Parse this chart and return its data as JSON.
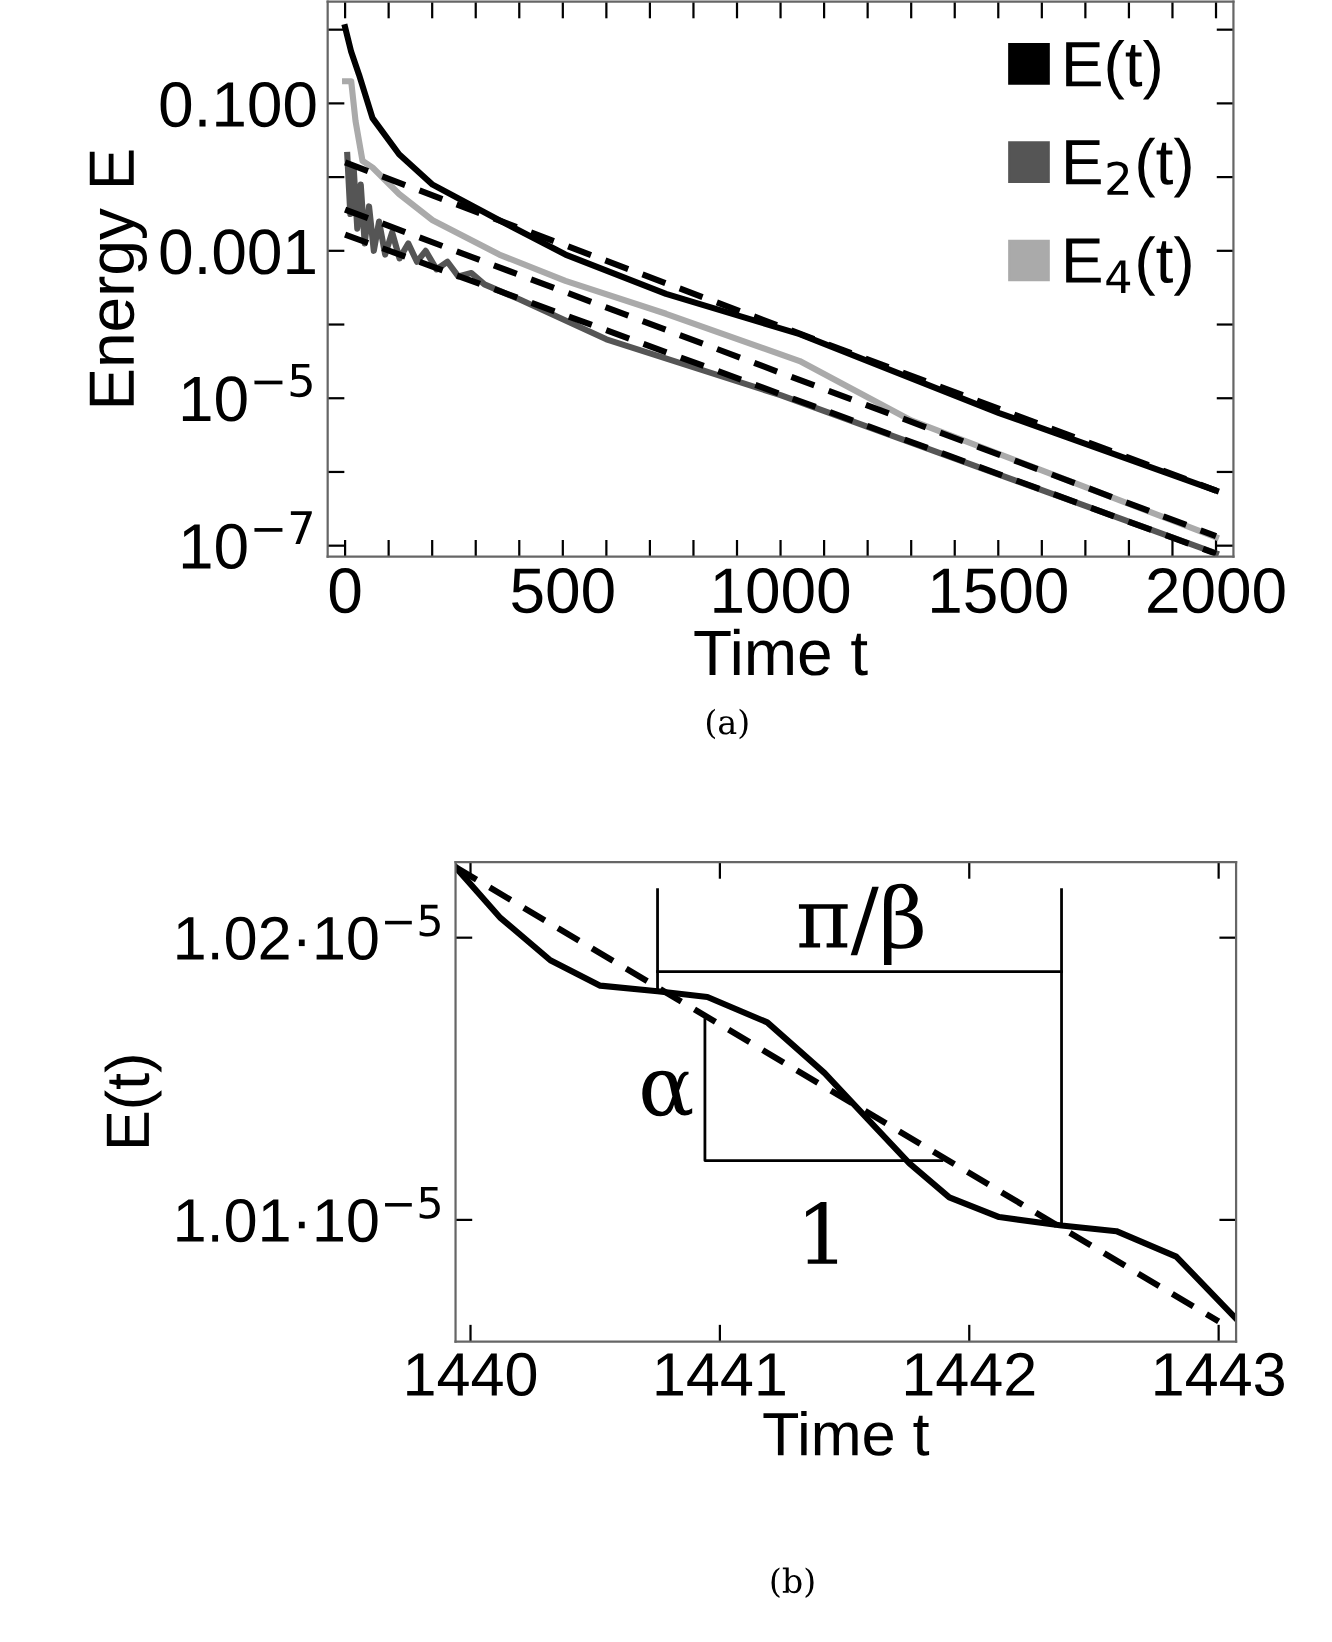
{
  "chart_data": [
    {
      "type": "line",
      "xlabel": "Time t",
      "ylabel": "Energy E",
      "log": "y",
      "legend": "top right",
      "grid": false,
      "marker": "none",
      "xlim": [
        -40,
        2040
      ],
      "xticks": [
        0,
        {
          "value": 100,
          "label": null
        },
        {
          "value": 200,
          "label": null
        },
        {
          "value": 300,
          "label": null
        },
        {
          "value": 400,
          "label": null
        },
        500,
        {
          "value": 600,
          "label": null
        },
        {
          "value": 700,
          "label": null
        },
        {
          "value": 800,
          "label": null
        },
        {
          "value": 900,
          "label": null
        },
        1000,
        {
          "value": 1100,
          "label": null
        },
        {
          "value": 1200,
          "label": null
        },
        {
          "value": 1300,
          "label": null
        },
        {
          "value": 1400,
          "label": null
        },
        1500,
        {
          "value": 1600,
          "label": null
        },
        {
          "value": 1700,
          "label": null
        },
        {
          "value": 1800,
          "label": null
        },
        {
          "value": 1900,
          "label": null
        },
        2000
      ],
      "ylim": [
        7.1e-08,
        2.4
      ],
      "yticks": [
        {
          "value": 1,
          "label": null
        },
        {
          "value": 0.1,
          "label": "0.100"
        },
        {
          "value": 0.01,
          "label": null
        },
        {
          "value": 0.001,
          "label": "0.001"
        },
        {
          "value": 0.0001,
          "label": null
        },
        {
          "value": 1e-05,
          "label": "10$^{−5}$"
        },
        {
          "value": 1e-06,
          "label": null
        },
        {
          "value": 1e-07,
          "label": "10$^{−7}$"
        }
      ],
      "annotations": [
        "(a)"
      ],
      "series": [
        {
          "name": "E(t)",
          "color": "#000000",
          "line_style": "solid",
          "x": [
            0,
            14,
            32,
            63,
            124,
            201,
            354,
            506,
            737,
            1044,
            1502,
            2000
          ],
          "values": [
            1.08,
            0.5,
            0.245,
            0.063,
            0.0204,
            0.0079,
            0.0026,
            0.00089,
            0.00026,
            7.4e-05,
            6.3e-06,
            5.6e-07
          ]
        },
        {
          "name": "E$_{2}$(t)",
          "color": "#555555",
          "line_style": "solid",
          "x": [
            5,
            12,
            20,
            28,
            36,
            45,
            55,
            66,
            78,
            92,
            108,
            125,
            145,
            165,
            185,
            210,
            235,
            260,
            290,
            320,
            400,
            600,
            1000,
            1500,
            2000
          ],
          "values": [
            0.02,
            0.00316,
            0.0126,
            0.002,
            0.0079,
            0.00126,
            0.004,
            0.001,
            0.0025,
            0.00089,
            0.00178,
            0.00079,
            0.00126,
            0.00071,
            0.001,
            0.00056,
            0.00071,
            0.00045,
            0.0005,
            0.00035,
            0.00022,
            6.3e-05,
            1.1e-05,
            9.3e-07,
            7.9e-08
          ]
        },
        {
          "name": "E$_{4}$(t)",
          "color": "#aaaaaa",
          "line_style": "solid",
          "x": [
            0,
            14,
            24,
            40,
            63,
            124,
            201,
            354,
            506,
            737,
            1044,
            1300,
            1600,
            2000
          ],
          "values": [
            0.2,
            0.2,
            0.0575,
            0.0166,
            0.0135,
            0.0059,
            0.0026,
            0.00089,
            0.00039,
            0.00014,
            3.2e-05,
            5e-06,
            1.05e-06,
            1.3e-07
          ]
        },
        {
          "color": "#000000",
          "line_style": "dashed",
          "x": [
            0,
            2000
          ],
          "values": [
            0.0158,
            5.6e-07
          ]
        },
        {
          "color": "#000000",
          "line_style": "dashed",
          "x": [
            0,
            2000
          ],
          "values": [
            0.00363,
            1.35e-07
          ]
        },
        {
          "color": "#000000",
          "line_style": "dashed",
          "x": [
            0,
            2000
          ],
          "values": [
            0.00166,
            7.8e-08
          ]
        }
      ]
    },
    {
      "type": "line",
      "xlabel": "Time t",
      "ylabel": "E(t)",
      "legend": false,
      "grid": false,
      "marker": "none",
      "xlim": [
        1439.94,
        1443.07
      ],
      "xticks": [
        1440,
        1441,
        1442,
        1443
      ],
      "ylim": [
        1.00569e-05,
        1.02268e-05
      ],
      "yticks": [
        {
          "value": 1.01e-05,
          "label": "1.01·10$^{−5}$"
        },
        {
          "value": 1.02e-05,
          "label": "1.02·10$^{−5}$"
        }
      ],
      "annotations": [
        "(b)",
        "π/β",
        "α",
        "1"
      ],
      "series": [
        {
          "color": "#000000",
          "line_style": "solid",
          "x": [
            1439.94,
            1440.12,
            1440.32,
            1440.52,
            1440.75,
            1440.95,
            1441.19,
            1441.42,
            1441.59,
            1441.76,
            1441.92,
            1442.12,
            1442.37,
            1442.59,
            1442.83,
            1443.07
          ],
          "values": [
            1.0225e-05,
            1.0207e-05,
            1.0192e-05,
            1.0183e-05,
            1.0181e-05,
            1.0179e-05,
            1.017e-05,
            1.0152e-05,
            1.0136e-05,
            1.012e-05,
            1.0108e-05,
            1.0101e-05,
            1.0098e-05,
            1.0096e-05,
            1.0087e-05,
            1.0065e-05
          ]
        },
        {
          "color": "#000000",
          "line_style": "dashed",
          "x": [
            1439.94,
            1443.0
          ],
          "values": [
            1.0225e-05,
            1.0064e-05
          ]
        },
        {
          "color": "#000000",
          "line_style": "solid",
          "x": [
            1440.75,
            1440.75
          ],
          "values": [
            1.0181e-05,
            1.0217e-05
          ]
        },
        {
          "color": "#000000",
          "line_style": "solid",
          "x": [
            1442.37,
            1442.37
          ],
          "values": [
            1.0098e-05,
            1.0217e-05
          ]
        },
        {
          "color": "#000000",
          "line_style": "solid",
          "x": [
            1440.75,
            1442.37
          ],
          "values": [
            1.0188e-05,
            1.0188e-05
          ]
        },
        {
          "color": "#000000",
          "line_style": "solid",
          "x": [
            1440.94,
            1440.94,
            1441.89
          ],
          "values": [
            1.0171e-05,
            1.0121e-05,
            1.0121e-05
          ]
        }
      ]
    }
  ]
}
